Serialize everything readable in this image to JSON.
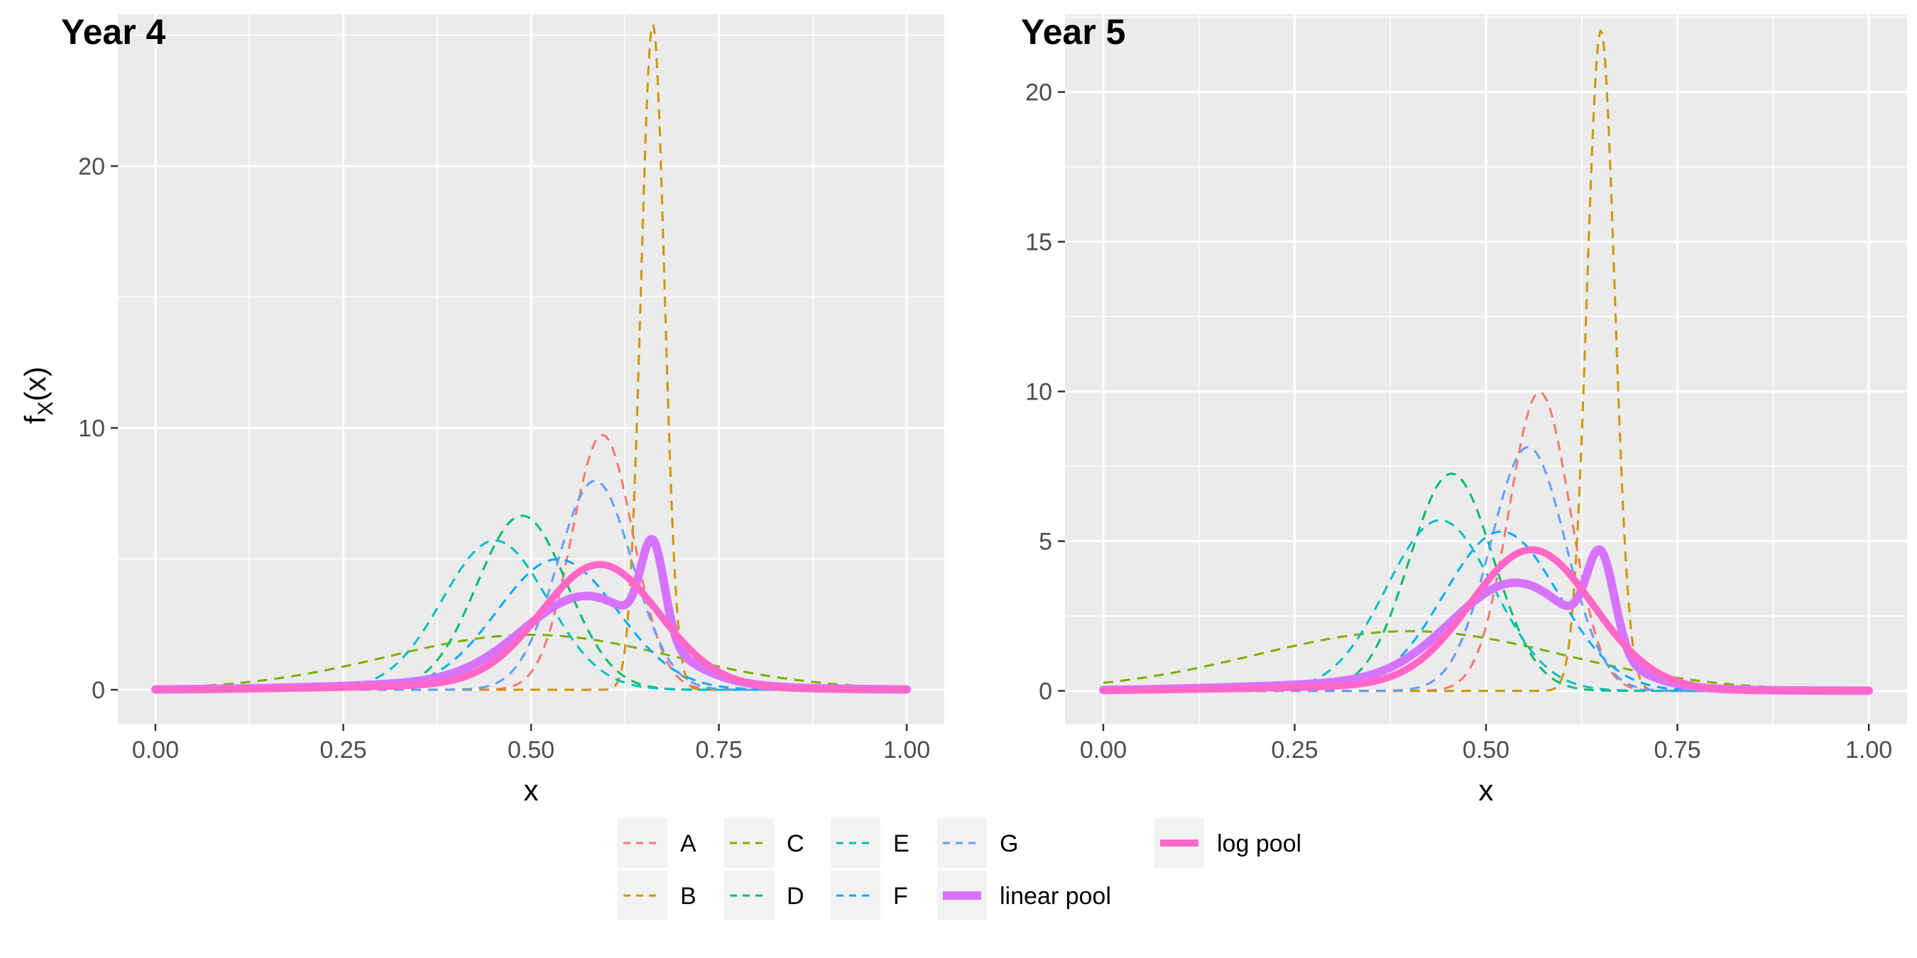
{
  "chart_data": [
    {
      "type": "line",
      "title": "Year 4",
      "xlabel": "x",
      "ylabel_main": "f",
      "ylabel_sub": "X",
      "ylabel_tail": "(x)",
      "xlim": [
        -0.05,
        1.05
      ],
      "ylim": [
        -1.3,
        25.8
      ],
      "xticks": [
        0,
        0.25,
        0.5,
        0.75,
        1
      ],
      "xtick_labels": [
        "0.00",
        "0.25",
        "0.50",
        "0.75",
        "1.00"
      ],
      "yticks": [
        0,
        10,
        20
      ],
      "ytick_labels": [
        "0",
        "10",
        "20"
      ],
      "grid": true,
      "series": [
        {
          "name": "A",
          "color": "#F8766D",
          "style": "dashed",
          "components": [
            {
              "w": 1,
              "mu": 0.595,
              "sd": 0.041,
              "skew": 0
            }
          ]
        },
        {
          "name": "B",
          "color": "#CD9600",
          "style": "dashed",
          "components": [
            {
              "w": 1,
              "mu": 0.662,
              "sd": 0.0157,
              "skew": 0
            }
          ]
        },
        {
          "name": "C",
          "color": "#7CAE00",
          "style": "dashed",
          "components": [
            {
              "w": 1,
              "mu": 0.5,
              "sd": 0.19,
              "skew": 0
            }
          ]
        },
        {
          "name": "D",
          "color": "#00BE67",
          "style": "dashed",
          "components": [
            {
              "w": 1,
              "mu": 0.488,
              "sd": 0.06,
              "skew": 0
            }
          ]
        },
        {
          "name": "E",
          "color": "#00BFC4",
          "style": "dashed",
          "components": [
            {
              "w": 1,
              "mu": 0.452,
              "sd": 0.07,
              "skew": 0
            }
          ]
        },
        {
          "name": "F",
          "color": "#00A9FF",
          "style": "dashed",
          "components": [
            {
              "w": 1,
              "mu": 0.535,
              "sd": 0.08,
              "skew": 0
            }
          ]
        },
        {
          "name": "G",
          "color": "#619CFF",
          "style": "dashed",
          "components": [
            {
              "w": 1,
              "mu": 0.585,
              "sd": 0.05,
              "skew": 0
            }
          ]
        },
        {
          "name": "linear pool",
          "color": "#D774FF",
          "style": "solid",
          "width_key": "linear",
          "components": [
            {
              "w": 0.7,
              "mu": 0.575,
              "sd": 0.085,
              "skew": 0
            },
            {
              "w": 0.14,
              "mu": 0.662,
              "sd": 0.0157,
              "skew": 0
            },
            {
              "w": 0.16,
              "mu": 0.5,
              "sd": 0.2,
              "skew": 0
            }
          ]
        },
        {
          "name": "log pool",
          "color": "#FF68C8",
          "style": "solid",
          "width_key": "log",
          "components": [
            {
              "w": 0.9,
              "mu": 0.592,
              "sd": 0.078,
              "skew": 0
            },
            {
              "w": 0.1,
              "mu": 0.5,
              "sd": 0.2,
              "skew": 0
            }
          ]
        }
      ]
    },
    {
      "type": "line",
      "title": "Year 5",
      "xlabel": "x",
      "xlim": [
        -0.05,
        1.05
      ],
      "ylim": [
        -1.1,
        22.6
      ],
      "xticks": [
        0,
        0.25,
        0.5,
        0.75,
        1
      ],
      "xtick_labels": [
        "0.00",
        "0.25",
        "0.50",
        "0.75",
        "1.00"
      ],
      "yticks": [
        0,
        5,
        10,
        15,
        20
      ],
      "ytick_labels": [
        "0",
        "5",
        "10",
        "15",
        "20"
      ],
      "grid": true,
      "series": [
        {
          "name": "A",
          "color": "#F8766D",
          "style": "dashed",
          "components": [
            {
              "w": 1,
              "mu": 0.57,
              "sd": 0.04,
              "skew": 0
            }
          ]
        },
        {
          "name": "B",
          "color": "#CD9600",
          "style": "dashed",
          "components": [
            {
              "w": 1,
              "mu": 0.65,
              "sd": 0.0181,
              "skew": 0
            }
          ]
        },
        {
          "name": "C",
          "color": "#7CAE00",
          "style": "dashed",
          "components": [
            {
              "w": 1,
              "mu": 0.4,
              "sd": 0.2,
              "skew": 0
            }
          ]
        },
        {
          "name": "D",
          "color": "#00BE67",
          "style": "dashed",
          "components": [
            {
              "w": 1,
              "mu": 0.455,
              "sd": 0.055,
              "skew": 0
            }
          ]
        },
        {
          "name": "E",
          "color": "#00BFC4",
          "style": "dashed",
          "components": [
            {
              "w": 1,
              "mu": 0.44,
              "sd": 0.07,
              "skew": 0
            }
          ]
        },
        {
          "name": "F",
          "color": "#00A9FF",
          "style": "dashed",
          "components": [
            {
              "w": 1,
              "mu": 0.52,
              "sd": 0.075,
              "skew": 0
            }
          ]
        },
        {
          "name": "G",
          "color": "#619CFF",
          "style": "dashed",
          "components": [
            {
              "w": 1,
              "mu": 0.555,
              "sd": 0.049,
              "skew": 0
            }
          ]
        },
        {
          "name": "linear pool",
          "color": "#D774FF",
          "style": "solid",
          "width_key": "linear",
          "components": [
            {
              "w": 0.72,
              "mu": 0.54,
              "sd": 0.085,
              "skew": 0
            },
            {
              "w": 0.14,
              "mu": 0.65,
              "sd": 0.0181,
              "skew": 0
            },
            {
              "w": 0.14,
              "mu": 0.42,
              "sd": 0.2,
              "skew": 0
            }
          ]
        },
        {
          "name": "log pool",
          "color": "#FF68C8",
          "style": "solid",
          "width_key": "log",
          "components": [
            {
              "w": 0.92,
              "mu": 0.56,
              "sd": 0.08,
              "skew": 0
            },
            {
              "w": 0.08,
              "mu": 0.42,
              "sd": 0.2,
              "skew": 0
            }
          ]
        }
      ]
    }
  ],
  "legend": {
    "placement": "bottom",
    "entries": [
      {
        "label": "A",
        "color": "#F8766D",
        "style": "dashed"
      },
      {
        "label": "B",
        "color": "#CD9600",
        "style": "dashed"
      },
      {
        "label": "C",
        "color": "#7CAE00",
        "style": "dashed"
      },
      {
        "label": "D",
        "color": "#00BE67",
        "style": "dashed"
      },
      {
        "label": "E",
        "color": "#00BFC4",
        "style": "dashed"
      },
      {
        "label": "F",
        "color": "#00A9FF",
        "style": "dashed"
      },
      {
        "label": "G",
        "color": "#619CFF",
        "style": "dashed"
      },
      {
        "label": "linear pool",
        "color": "#D774FF",
        "style": "solid"
      },
      {
        "label": "log pool",
        "color": "#FF68C8",
        "style": "solid"
      }
    ]
  }
}
